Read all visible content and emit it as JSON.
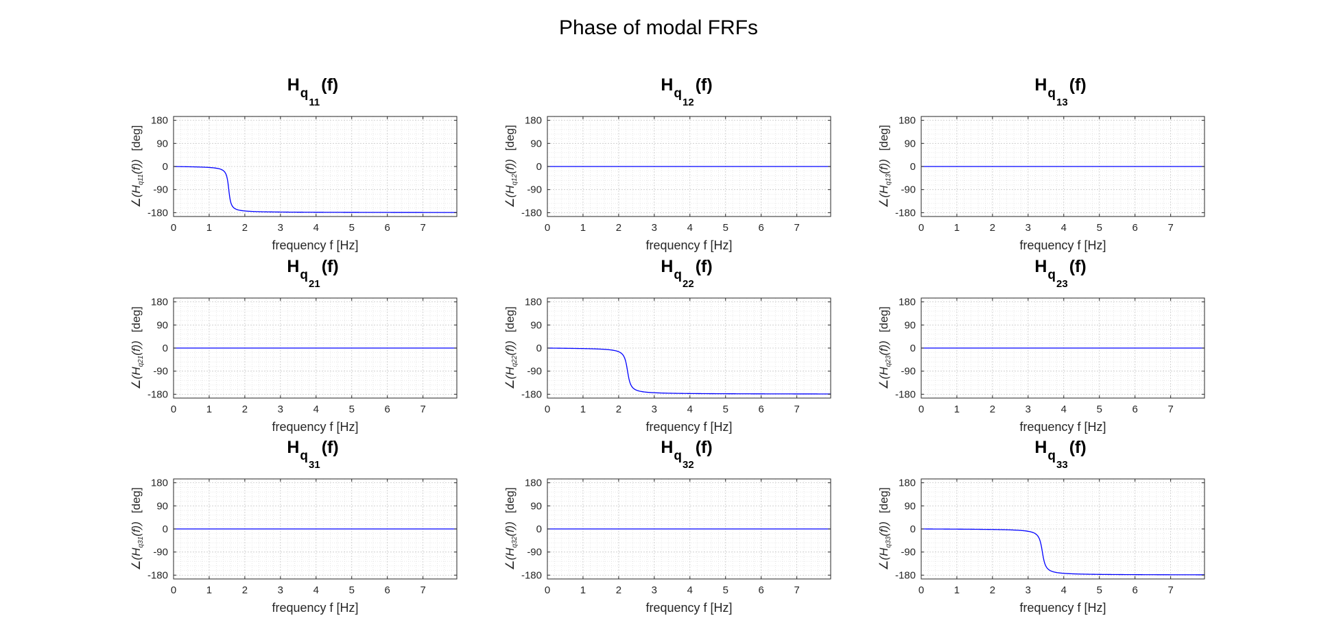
{
  "figure": {
    "title": "Phase of modal FRFs"
  },
  "chart_data": [
    {
      "type": "line",
      "title_base": "H",
      "title_sub1": "q",
      "title_sub2": "11",
      "title_tail": "(f)",
      "xlabel": "frequency f [Hz]",
      "ylabel": "∠(H_q11(f))  [deg]",
      "ylabel_sub": "q11",
      "ylabel_unit": "[deg]",
      "xlim": [
        0,
        7.95
      ],
      "ylim": [
        -195,
        195
      ],
      "xticks": [
        0,
        1,
        2,
        3,
        4,
        5,
        6,
        7
      ],
      "yticks": [
        -180,
        -90,
        0,
        90,
        180
      ],
      "grid": "on",
      "series": [
        {
          "color": "#0000ff",
          "kind": "phase",
          "fn": 1.55,
          "zeta": 0.03
        }
      ]
    },
    {
      "type": "line",
      "title_base": "H",
      "title_sub1": "q",
      "title_sub2": "12",
      "title_tail": "(f)",
      "xlabel": "frequency f [Hz]",
      "ylabel": "∠(H_q12(f))  [deg]",
      "ylabel_sub": "q12",
      "ylabel_unit": "[deg]",
      "xlim": [
        0,
        7.95
      ],
      "ylim": [
        -195,
        195
      ],
      "xticks": [
        0,
        1,
        2,
        3,
        4,
        5,
        6,
        7
      ],
      "yticks": [
        -180,
        -90,
        0,
        90,
        180
      ],
      "grid": "on",
      "series": [
        {
          "color": "#0000ff",
          "kind": "constant",
          "value": 0
        }
      ]
    },
    {
      "type": "line",
      "title_base": "H",
      "title_sub1": "q",
      "title_sub2": "13",
      "title_tail": "(f)",
      "xlabel": "frequency f [Hz]",
      "ylabel": "∠(H_q13(f))  [deg]",
      "ylabel_sub": "q13",
      "ylabel_unit": "[deg]",
      "xlim": [
        0,
        7.95
      ],
      "ylim": [
        -195,
        195
      ],
      "xticks": [
        0,
        1,
        2,
        3,
        4,
        5,
        6,
        7
      ],
      "yticks": [
        -180,
        -90,
        0,
        90,
        180
      ],
      "grid": "on",
      "series": [
        {
          "color": "#0000ff",
          "kind": "constant",
          "value": 0
        }
      ]
    },
    {
      "type": "line",
      "title_base": "H",
      "title_sub1": "q",
      "title_sub2": "21",
      "title_tail": "(f)",
      "xlabel": "frequency f [Hz]",
      "ylabel": "∠(H_q21(f))  [deg]",
      "ylabel_sub": "q21",
      "ylabel_unit": "[deg]",
      "xlim": [
        0,
        7.95
      ],
      "ylim": [
        -195,
        195
      ],
      "xticks": [
        0,
        1,
        2,
        3,
        4,
        5,
        6,
        7
      ],
      "yticks": [
        -180,
        -90,
        0,
        90,
        180
      ],
      "grid": "on",
      "series": [
        {
          "color": "#0000ff",
          "kind": "constant",
          "value": 0
        }
      ]
    },
    {
      "type": "line",
      "title_base": "H",
      "title_sub1": "q",
      "title_sub2": "22",
      "title_tail": "(f)",
      "xlabel": "frequency f [Hz]",
      "ylabel": "∠(H_q22(f))  [deg]",
      "ylabel_sub": "q22",
      "ylabel_unit": "[deg]",
      "xlim": [
        0,
        7.95
      ],
      "ylim": [
        -195,
        195
      ],
      "xticks": [
        0,
        1,
        2,
        3,
        4,
        5,
        6,
        7
      ],
      "yticks": [
        -180,
        -90,
        0,
        90,
        180
      ],
      "grid": "on",
      "series": [
        {
          "color": "#0000ff",
          "kind": "phase",
          "fn": 2.25,
          "zeta": 0.03
        }
      ]
    },
    {
      "type": "line",
      "title_base": "H",
      "title_sub1": "q",
      "title_sub2": "23",
      "title_tail": "(f)",
      "xlabel": "frequency f [Hz]",
      "ylabel": "∠(H_q23(f))  [deg]",
      "ylabel_sub": "q23",
      "ylabel_unit": "[deg]",
      "xlim": [
        0,
        7.95
      ],
      "ylim": [
        -195,
        195
      ],
      "xticks": [
        0,
        1,
        2,
        3,
        4,
        5,
        6,
        7
      ],
      "yticks": [
        -180,
        -90,
        0,
        90,
        180
      ],
      "grid": "on",
      "series": [
        {
          "color": "#0000ff",
          "kind": "constant",
          "value": 0
        }
      ]
    },
    {
      "type": "line",
      "title_base": "H",
      "title_sub1": "q",
      "title_sub2": "31",
      "title_tail": "(f)",
      "xlabel": "frequency f [Hz]",
      "ylabel": "∠(H_q31(f))  [deg]",
      "ylabel_sub": "q31",
      "ylabel_unit": "[deg]",
      "xlim": [
        0,
        7.95
      ],
      "ylim": [
        -195,
        195
      ],
      "xticks": [
        0,
        1,
        2,
        3,
        4,
        5,
        6,
        7
      ],
      "yticks": [
        -180,
        -90,
        0,
        90,
        180
      ],
      "grid": "on",
      "series": [
        {
          "color": "#0000ff",
          "kind": "constant",
          "value": 0
        }
      ]
    },
    {
      "type": "line",
      "title_base": "H",
      "title_sub1": "q",
      "title_sub2": "32",
      "title_tail": "(f)",
      "xlabel": "frequency f [Hz]",
      "ylabel": "∠(H_q32(f))  [deg]",
      "ylabel_sub": "q32",
      "ylabel_unit": "[deg]",
      "xlim": [
        0,
        7.95
      ],
      "ylim": [
        -195,
        195
      ],
      "xticks": [
        0,
        1,
        2,
        3,
        4,
        5,
        6,
        7
      ],
      "yticks": [
        -180,
        -90,
        0,
        90,
        180
      ],
      "grid": "on",
      "series": [
        {
          "color": "#0000ff",
          "kind": "constant",
          "value": 0
        }
      ]
    },
    {
      "type": "line",
      "title_base": "H",
      "title_sub1": "q",
      "title_sub2": "33",
      "title_tail": "(f)",
      "xlabel": "frequency f [Hz]",
      "ylabel": "∠(H_q33(f))  [deg]",
      "ylabel_sub": "q33",
      "ylabel_unit": "[deg]",
      "xlim": [
        0,
        7.95
      ],
      "ylim": [
        -195,
        195
      ],
      "xticks": [
        0,
        1,
        2,
        3,
        4,
        5,
        6,
        7
      ],
      "yticks": [
        -180,
        -90,
        0,
        90,
        180
      ],
      "grid": "on",
      "series": [
        {
          "color": "#0000ff",
          "kind": "phase",
          "fn": 3.4,
          "zeta": 0.02
        }
      ]
    }
  ]
}
